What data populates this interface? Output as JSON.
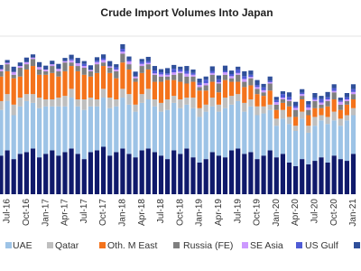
{
  "chart_data": {
    "type": "stacked_bar",
    "title": "Crude Import Volumes Into Japan",
    "categories": [
      null,
      "Jul-16",
      null,
      null,
      "Oct-16",
      null,
      null,
      "Jan-17",
      null,
      null,
      "Apr-17",
      null,
      null,
      "Jul-17",
      null,
      null,
      "Oct-17",
      null,
      null,
      "Jan-18",
      null,
      null,
      "Apr-18",
      null,
      null,
      "Jul-18",
      null,
      null,
      "Oct-18",
      null,
      null,
      "Jan-19",
      null,
      null,
      "Apr-19",
      null,
      null,
      "Jul-19",
      null,
      null,
      "Oct-19",
      null,
      null,
      "Jan-20",
      null,
      null,
      "Apr-20",
      null,
      null,
      "Jul-20",
      null,
      null,
      "Oct-20",
      null,
      null,
      "Jan-21"
    ],
    "ylim": [
      0,
      4500
    ],
    "series": [
      {
        "color": "#101a6b",
        "values": [
          1100,
          1250,
          1000,
          1150,
          1200,
          1300,
          1050,
          1150,
          1250,
          1100,
          1200,
          1300,
          1150,
          1000,
          1200,
          1250,
          1350,
          1100,
          1200,
          1300,
          1150,
          1050,
          1250,
          1300,
          1200,
          1100,
          1000,
          1250,
          1150,
          1300,
          1050,
          900,
          1000,
          1200,
          1100,
          1050,
          1250,
          1300,
          1150,
          1200,
          1000,
          1100,
          1250,
          1050,
          1150,
          900,
          800,
          1000,
          850,
          950,
          1050,
          900,
          1100,
          1000,
          950,
          1150
        ]
      },
      {
        "name": "UAE",
        "color": "#9dc3e6",
        "values": [
          1300,
          1400,
          1250,
          1350,
          1450,
          1300,
          1400,
          1350,
          1250,
          1400,
          1300,
          1450,
          1350,
          1400,
          1300,
          1250,
          1400,
          1350,
          1300,
          1450,
          1400,
          1300,
          1350,
          1400,
          1300,
          1250,
          1400,
          1350,
          1300,
          1250,
          1400,
          1300,
          1350,
          1300,
          1250,
          1400,
          1300,
          1350,
          1200,
          1300,
          1250,
          1200,
          1150,
          900,
          1000,
          1100,
          1000,
          1150,
          900,
          1000,
          1050,
          1100,
          1000,
          950,
          1150,
          1100
        ]
      },
      {
        "name": "Qatar",
        "color": "#bfbfbf",
        "values": [
          250,
          200,
          300,
          250,
          200,
          250,
          300,
          200,
          200,
          250,
          300,
          250,
          200,
          300,
          250,
          200,
          250,
          300,
          200,
          250,
          300,
          200,
          250,
          300,
          200,
          250,
          300,
          200,
          250,
          200,
          300,
          250,
          200,
          250,
          200,
          300,
          250,
          200,
          250,
          200,
          250,
          200,
          150,
          200,
          250,
          200,
          150,
          200,
          200,
          250,
          150,
          200,
          250,
          200,
          150,
          200
        ]
      },
      {
        "name": "Oth. M East",
        "color": "#f4731c",
        "values": [
          700,
          650,
          750,
          600,
          700,
          800,
          650,
          700,
          750,
          600,
          700,
          650,
          800,
          700,
          600,
          750,
          650,
          700,
          600,
          750,
          700,
          650,
          600,
          550,
          500,
          600,
          550,
          450,
          500,
          400,
          450,
          500,
          400,
          450,
          350,
          500,
          400,
          350,
          450,
          400,
          350,
          300,
          400,
          250,
          200,
          300,
          250,
          350,
          300,
          250,
          200,
          300,
          350,
          250,
          300,
          250
        ]
      },
      {
        "name": "Russia (FE)",
        "color": "#7f7f7f",
        "values": [
          150,
          200,
          100,
          250,
          150,
          200,
          150,
          100,
          200,
          150,
          250,
          100,
          150,
          200,
          150,
          250,
          100,
          150,
          200,
          250,
          150,
          100,
          200,
          150,
          200,
          150,
          100,
          150,
          250,
          200,
          150,
          100,
          150,
          200,
          250,
          150,
          100,
          200,
          150,
          200,
          150,
          100,
          200,
          150,
          100,
          150,
          200,
          100,
          150,
          200,
          100,
          150,
          200,
          150,
          100,
          150
        ]
      },
      {
        "name": "SE Asia",
        "color": "#cc99ff",
        "values": [
          60,
          40,
          80,
          50,
          60,
          40,
          70,
          50,
          50,
          70,
          40,
          60,
          80,
          50,
          40,
          60,
          70,
          40,
          50,
          60,
          80,
          50,
          60,
          40,
          40,
          60,
          50,
          70,
          40,
          80,
          50,
          60,
          60,
          50,
          40,
          70,
          60,
          50,
          80,
          40,
          50,
          60,
          40,
          70,
          50,
          40,
          60,
          50,
          70,
          40,
          60,
          50,
          40,
          80,
          50,
          60
        ]
      },
      {
        "name": "US Gulf",
        "color": "#4f5bd5",
        "values": [
          0,
          0,
          0,
          0,
          0,
          0,
          0,
          0,
          0,
          0,
          0,
          40,
          0,
          60,
          0,
          40,
          50,
          0,
          60,
          80,
          40,
          0,
          60,
          50,
          80,
          60,
          40,
          100,
          60,
          80,
          50,
          60,
          100,
          60,
          80,
          40,
          60,
          100,
          80,
          60,
          60,
          80,
          40,
          60,
          100,
          80,
          60,
          40,
          80,
          60,
          100,
          60,
          80,
          40,
          60,
          80
        ]
      },
      {
        "color": "#2f4f9a",
        "values": [
          120,
          80,
          150,
          100,
          130,
          90,
          140,
          110,
          100,
          140,
          90,
          120,
          150,
          80,
          130,
          100,
          110,
          150,
          90,
          130,
          100,
          140,
          80,
          120,
          130,
          90,
          150,
          110,
          80,
          140,
          100,
          120,
          90,
          130,
          110,
          150,
          100,
          80,
          140,
          120,
          140,
          100,
          120,
          90,
          80,
          130,
          110,
          100,
          100,
          130,
          90,
          150,
          110,
          80,
          120,
          140
        ]
      }
    ]
  }
}
